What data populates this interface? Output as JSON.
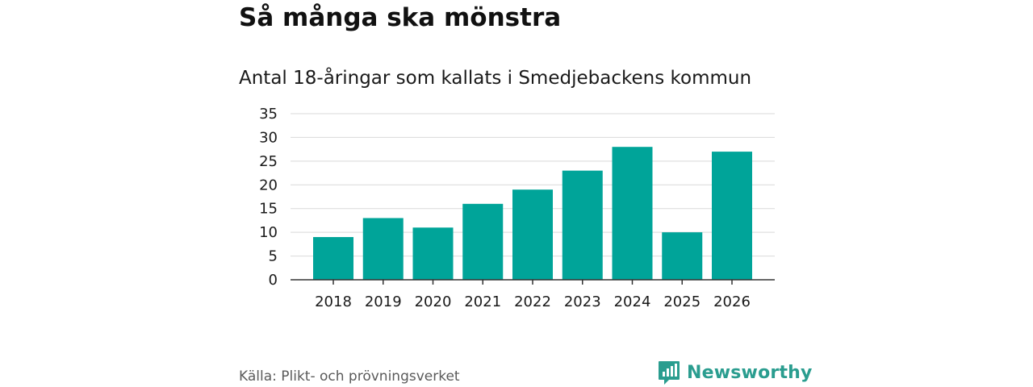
{
  "chart_data": {
    "type": "bar",
    "title": "Så många ska mönstra",
    "subtitle": "Antal 18-åringar som kallats i Smedjebackens kommun",
    "categories": [
      "2018",
      "2019",
      "2020",
      "2021",
      "2022",
      "2023",
      "2024",
      "2025",
      "2026"
    ],
    "values": [
      9,
      13,
      11,
      16,
      19,
      23,
      28,
      10,
      27
    ],
    "yticks": [
      0,
      5,
      10,
      15,
      20,
      25,
      30,
      35
    ],
    "ylim": [
      0,
      35
    ],
    "xlabel": "",
    "ylabel": "",
    "grid": true,
    "bar_color": "#00a499"
  },
  "footer": {
    "source": "Källa: Plikt- och prövningsverket",
    "brand": "Newsworthy",
    "brand_color": "#2a9d8f"
  }
}
